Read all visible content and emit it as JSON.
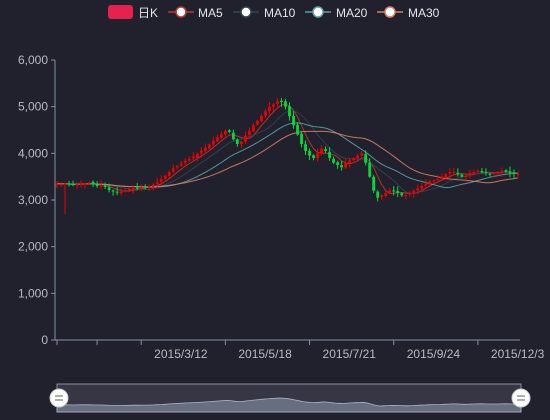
{
  "colors": {
    "background": "#21202d",
    "up": "#ec0000",
    "down": "#00da3c",
    "ma5": "#c23531",
    "ma10": "#2f4554",
    "ma20": "#61a0a8",
    "ma30": "#d48265",
    "axis": "#8392a5"
  },
  "legend": [
    {
      "name": "日K",
      "icon": "candle-swatch-icon",
      "color": "#e6214f"
    },
    {
      "name": "MA5",
      "icon": "circle-marker-icon",
      "color": "#c23531"
    },
    {
      "name": "MA10",
      "icon": "circle-marker-icon",
      "color": "#2f4554"
    },
    {
      "name": "MA20",
      "icon": "circle-marker-icon",
      "color": "#61a0a8"
    },
    {
      "name": "MA30",
      "icon": "circle-marker-icon",
      "color": "#d48265"
    }
  ],
  "chart_data": {
    "type": "candlestick",
    "ylim": [
      0,
      6000
    ],
    "yticks": [
      "0",
      "1,000",
      "2,000",
      "3,000",
      "4,000",
      "5,000",
      "6,000"
    ],
    "xtick_labels": [
      "2015/3/12",
      "2015/5/18",
      "2015/7/21",
      "2015/9/24",
      "2015/12/3"
    ],
    "xtick_indices": [
      21,
      42,
      63,
      84,
      105
    ],
    "n_points": 116,
    "close_series": [
      3350,
      3340,
      3355,
      3330,
      3320,
      3340,
      3360,
      3350,
      3370,
      3330,
      3300,
      3320,
      3280,
      3210,
      3190,
      3160,
      3180,
      3200,
      3230,
      3260,
      3250,
      3270,
      3280,
      3300,
      3330,
      3380,
      3450,
      3520,
      3600,
      3680,
      3730,
      3780,
      3840,
      3880,
      3930,
      3990,
      4060,
      4120,
      4190,
      4270,
      4340,
      4410,
      4480,
      4460,
      4300,
      4200,
      4250,
      4380,
      4480,
      4600,
      4700,
      4800,
      4900,
      5000,
      5050,
      5120,
      5100,
      5000,
      4800,
      4600,
      4400,
      4200,
      4050,
      3950,
      3900,
      4000,
      4100,
      4050,
      3900,
      3800,
      3750,
      3700,
      3800,
      3850,
      3900,
      3950,
      4000,
      3800,
      3500,
      3200,
      3050,
      3100,
      3150,
      3200,
      3200,
      3150,
      3100,
      3100,
      3150,
      3200,
      3250,
      3300,
      3350,
      3400,
      3420,
      3450,
      3500,
      3550,
      3600,
      3600,
      3550,
      3500,
      3520,
      3580,
      3600,
      3620,
      3600,
      3580,
      3560,
      3580,
      3600,
      3620,
      3600,
      3580,
      3560,
      3560
    ]
  },
  "zoom_slider": {
    "start_percent": 0,
    "end_percent": 100
  }
}
